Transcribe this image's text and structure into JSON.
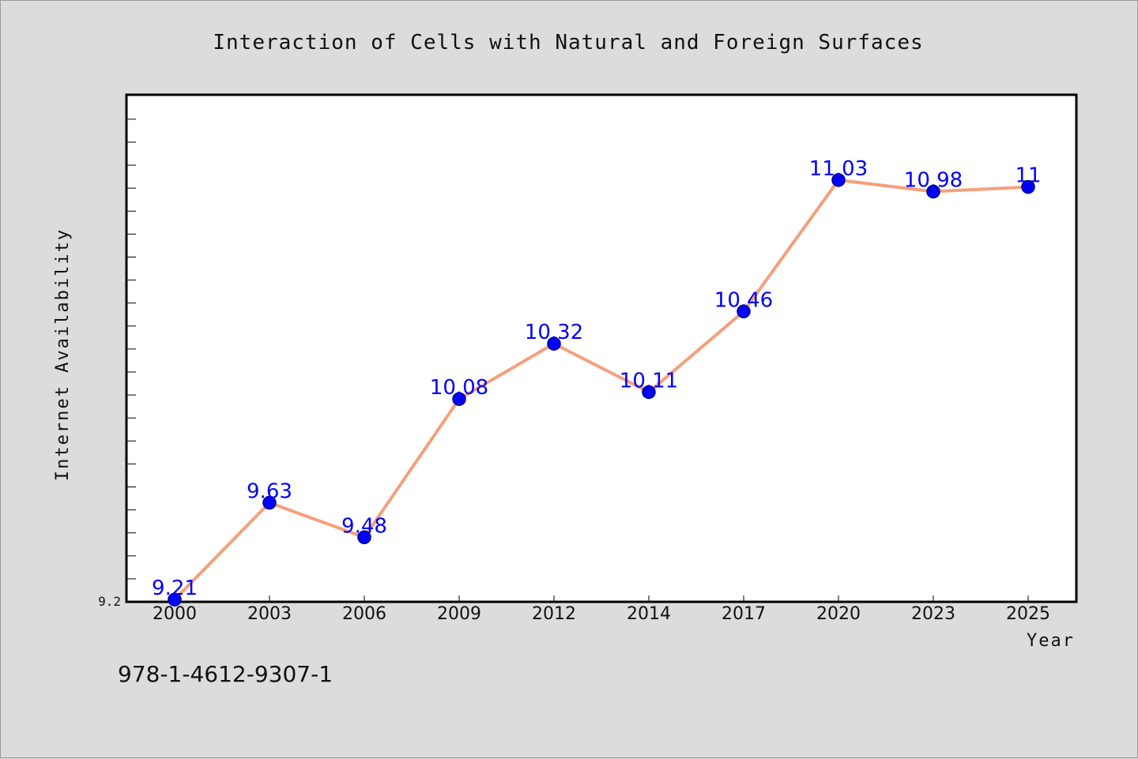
{
  "chart_data": {
    "type": "line",
    "title": "Interaction of Cells with Natural and Foreign Surfaces",
    "xlabel": "Year",
    "ylabel": "Internet Availability",
    "categories": [
      "2000",
      "2003",
      "2006",
      "2009",
      "2012",
      "2014",
      "2017",
      "2020",
      "2023",
      "2025"
    ],
    "series": [
      {
        "name": "",
        "values": [
          9.21,
          9.63,
          9.48,
          10.08,
          10.32,
          10.11,
          10.46,
          11.03,
          10.98,
          11
        ]
      }
    ],
    "data_labels": [
      "9.21",
      "9.63",
      "9.48",
      "10.08",
      "10.32",
      "10.11",
      "10.46",
      "11.03",
      "10.98",
      "11"
    ],
    "ylim": [
      9.2,
      11.4
    ],
    "y_tick_labels": [
      "9.2"
    ],
    "grid": false,
    "colors": {
      "line": "#f4a07c",
      "marker": "#0000ff",
      "marker_edge": "#00007a",
      "label": "#0000ff",
      "background": "#dcdcdc",
      "plot_background": "#ffffff"
    }
  },
  "footer": {
    "code": "978-1-4612-9307-1"
  }
}
